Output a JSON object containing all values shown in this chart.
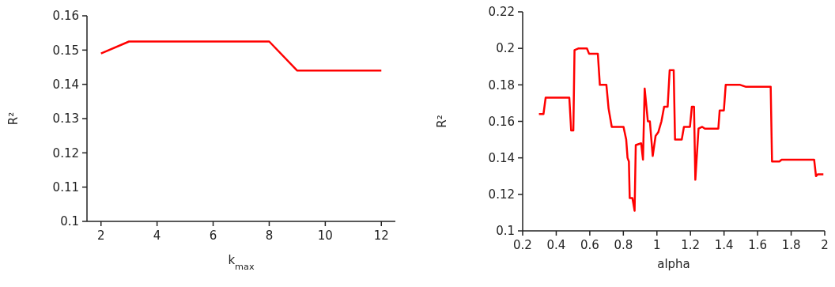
{
  "chart_data": [
    {
      "type": "line",
      "xlabel": "k$_{max}$",
      "ylabel": "R²",
      "x": [
        2,
        3,
        4,
        5,
        6,
        7,
        8,
        9,
        10,
        11,
        12
      ],
      "series": [
        {
          "color": "#ff0000",
          "values": [
            0.149,
            0.1525,
            0.1525,
            0.1525,
            0.1525,
            0.1525,
            0.1525,
            0.144,
            0.144,
            0.144,
            0.144
          ]
        }
      ],
      "xlim": [
        1.5,
        12.5
      ],
      "xticks": [
        2,
        4,
        6,
        8,
        10,
        12
      ],
      "ylim": [
        0.1,
        0.16
      ],
      "yticks": [
        0.1,
        0.11,
        0.12,
        0.13,
        0.14,
        0.15,
        0.16
      ],
      "grid": false,
      "legend": false,
      "marker": "none",
      "line_style": "solid"
    },
    {
      "type": "line",
      "xlabel": "alpha",
      "ylabel": "R²",
      "x": [
        0.297,
        0.324,
        0.337,
        0.478,
        0.489,
        0.502,
        0.509,
        0.534,
        0.547,
        0.583,
        0.596,
        0.648,
        0.66,
        0.699,
        0.712,
        0.731,
        0.801,
        0.817,
        0.825,
        0.833,
        0.838,
        0.854,
        0.867,
        0.874,
        0.906,
        0.917,
        0.927,
        0.946,
        0.958,
        0.975,
        0.992,
        1.008,
        1.027,
        1.043,
        1.064,
        1.076,
        1.1,
        1.108,
        1.148,
        1.161,
        1.197,
        1.208,
        1.221,
        1.229,
        1.248,
        1.27,
        1.286,
        1.366,
        1.374,
        1.399,
        1.41,
        1.488,
        1.496,
        1.528,
        1.678,
        1.686,
        1.73,
        1.743,
        1.937,
        1.948,
        1.959,
        1.992
      ],
      "series": [
        {
          "color": "#ff0000",
          "values": [
            0.164,
            0.164,
            0.173,
            0.173,
            0.155,
            0.155,
            0.199,
            0.2,
            0.2,
            0.2,
            0.197,
            0.197,
            0.18,
            0.18,
            0.167,
            0.157,
            0.157,
            0.15,
            0.14,
            0.138,
            0.118,
            0.118,
            0.111,
            0.147,
            0.148,
            0.139,
            0.178,
            0.16,
            0.16,
            0.141,
            0.152,
            0.154,
            0.16,
            0.168,
            0.168,
            0.188,
            0.188,
            0.15,
            0.15,
            0.157,
            0.157,
            0.168,
            0.168,
            0.128,
            0.156,
            0.157,
            0.156,
            0.156,
            0.166,
            0.166,
            0.18,
            0.18,
            0.18,
            0.179,
            0.179,
            0.138,
            0.138,
            0.139,
            0.139,
            0.13,
            0.131,
            0.131
          ]
        }
      ],
      "xlim": [
        0.2,
        2
      ],
      "xticks": [
        0.2,
        0.4,
        0.6,
        0.8,
        1,
        1.2,
        1.4,
        1.6,
        1.8,
        2
      ],
      "ylim": [
        0.1,
        0.22
      ],
      "yticks": [
        0.1,
        0.12,
        0.14,
        0.16,
        0.18,
        0.2,
        0.22
      ],
      "grid": false,
      "legend": false,
      "marker": "none",
      "line_style": "solid"
    }
  ]
}
